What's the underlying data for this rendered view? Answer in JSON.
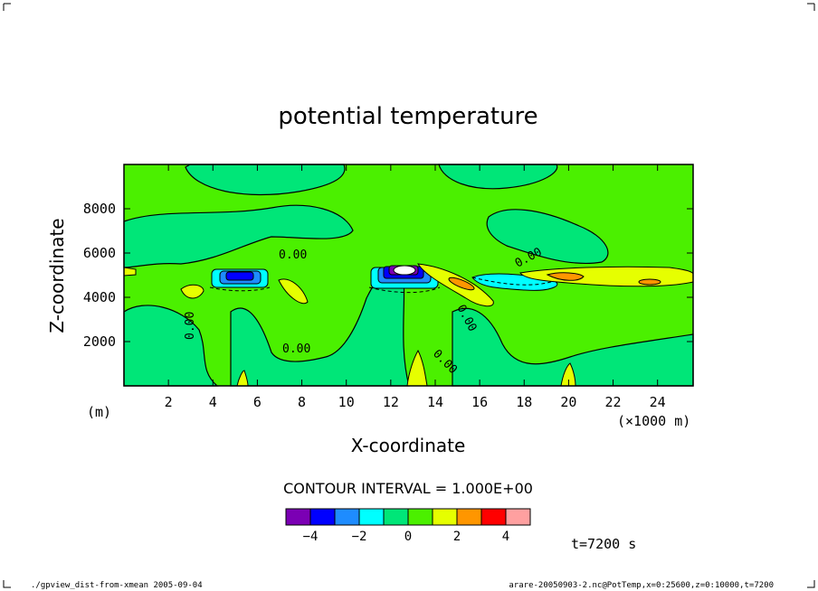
{
  "chart_data": {
    "type": "heatmap",
    "title": "potential temperature",
    "xlabel": "X-coordinate",
    "ylabel": "Z-coordinate",
    "x_unit": "(×1000 m)",
    "y_unit": "(m)",
    "xlim": [
      0,
      25.6
    ],
    "ylim": [
      0,
      10000
    ],
    "x_ticks": [
      2,
      4,
      6,
      8,
      10,
      12,
      14,
      16,
      18,
      20,
      22,
      24
    ],
    "y_ticks": [
      2000,
      4000,
      6000,
      8000
    ],
    "contour_interval_text": "CONTOUR INTERVAL = 1.000E+00",
    "contour_labels": [
      "0.00",
      "0.00",
      "0.00",
      "0.00",
      "0.00",
      "0.00"
    ],
    "colorbar": {
      "colors": [
        "#7b00b4",
        "#0000ff",
        "#1e8cff",
        "#00ffff",
        "#00e678",
        "#4bf000",
        "#e6ff00",
        "#ff9600",
        "#ff0000",
        "#ffa0a0"
      ],
      "tick_values": [
        -4,
        -2,
        0,
        2,
        4
      ],
      "tick_labels": [
        "−4",
        "−2",
        "0",
        "2",
        "4"
      ]
    },
    "background_level": "0 to 1 (green)",
    "features": [
      {
        "x_center": 5.3,
        "z_center": 4900,
        "min_level": -4
      },
      {
        "x_center": 12.7,
        "z_center": 5000,
        "min_level": -5
      },
      {
        "x_center": 17.5,
        "z_center": 4600,
        "min_level": -1
      },
      {
        "x_center": 19.9,
        "z_center": 4900,
        "max_level": 3
      }
    ],
    "time_label": "t=7200 s"
  },
  "footer": {
    "left": "./gpview_dist-from-xmean  2005-09-04",
    "right": "arare-20050903-2.nc@PotTemp,x=0:25600,z=0:10000,t=7200"
  }
}
